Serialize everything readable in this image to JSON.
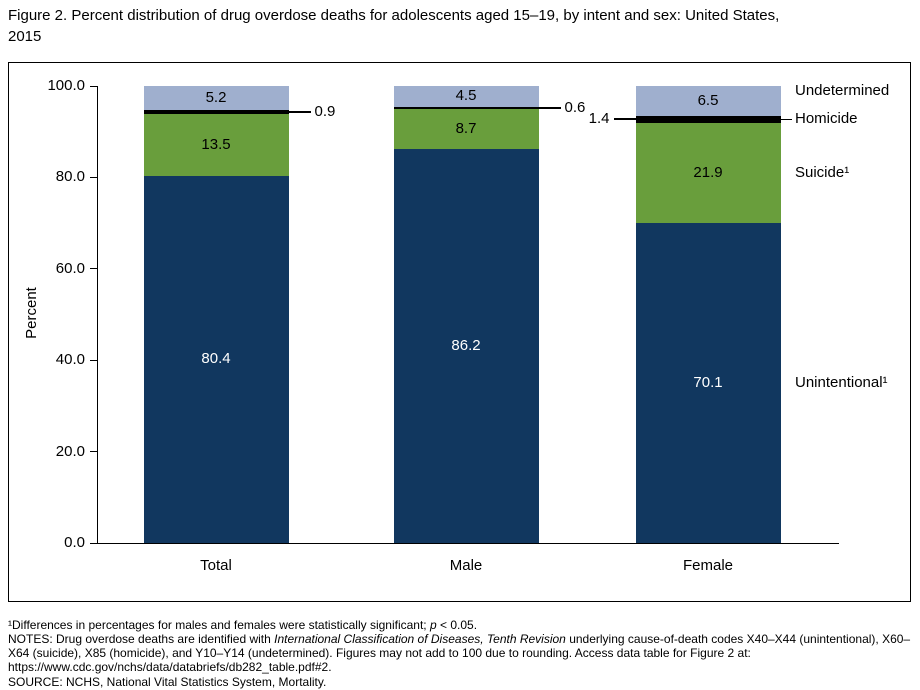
{
  "title": {
    "line1": "Figure 2. Percent distribution of drug overdose deaths for adolescents aged 15–19, by intent and sex: United States,",
    "line2": "2015"
  },
  "chart_data": {
    "type": "bar",
    "stacked": true,
    "categories": [
      "Total",
      "Male",
      "Female"
    ],
    "series": [
      {
        "name": "Unintentional",
        "legend_label": "Unintentional¹",
        "color": "#11375f",
        "text_color": "#ffffff",
        "values": [
          80.4,
          86.2,
          70.1
        ]
      },
      {
        "name": "Suicide",
        "legend_label": "Suicide¹",
        "color": "#699e3c",
        "text_color": "#000000",
        "values": [
          13.5,
          8.7,
          21.9
        ]
      },
      {
        "name": "Homicide",
        "legend_label": "Homicide",
        "color": "#000000",
        "text_color": "#000000",
        "values": [
          0.9,
          0.6,
          1.4
        ],
        "callout": true
      },
      {
        "name": "Undetermined",
        "legend_label": "Undetermined",
        "color": "#9fafce",
        "text_color": "#000000",
        "values": [
          5.2,
          4.5,
          6.5
        ]
      }
    ],
    "ylabel": "Percent",
    "xlabel": "",
    "ylim": [
      0,
      100
    ],
    "yticks": [
      0.0,
      20.0,
      40.0,
      60.0,
      80.0,
      100.0
    ],
    "grid": false,
    "legend_position": "right-of-last-bar"
  },
  "footnotes": {
    "sig_pre": "¹Differences in percentages for males and females were statistically significant; ",
    "sig_italic": "p",
    "sig_post": " < 0.05.",
    "notes_pre": "NOTES: Drug overdose deaths are identified with ",
    "notes_italic": "International Classification of Diseases, Tenth Revision",
    "notes_post": " underlying cause-of-death codes X40–X44 (unintentional), X60–X64 (suicide), X85 (homicide), and Y10–Y14 (undetermined). Figures may not add to 100 due to rounding. Access data table for Figure 2 at: https://www.cdc.gov/nchs/data/databriefs/db282_table.pdf#2.",
    "source": "SOURCE: NCHS, National Vital Statistics System, Mortality."
  }
}
